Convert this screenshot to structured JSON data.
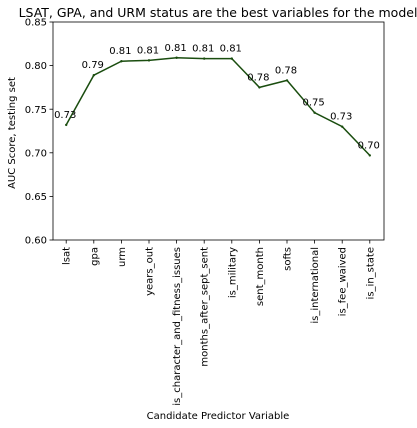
{
  "chart_data": {
    "type": "line",
    "title": "LSAT, GPA, and URM status are the best variables for the model",
    "xlabel": "Candidate Predictor Variable",
    "ylabel": "AUC Score, testing set",
    "ylim": [
      0.6,
      0.85
    ],
    "yticks": [
      0.6,
      0.65,
      0.7,
      0.75,
      0.8,
      0.85
    ],
    "ytick_labels": [
      "0.60",
      "0.65",
      "0.70",
      "0.75",
      "0.80",
      "0.85"
    ],
    "grid": false,
    "legend": "none",
    "categories": [
      "lsat",
      "gpa",
      "urm",
      "years_out",
      "is_character_and_fitness_issues",
      "months_after_sept_sent",
      "is_military",
      "sent_month",
      "softs",
      "is_international",
      "is_fee_waived",
      "is_in_state"
    ],
    "series": [
      {
        "values": [
          0.732,
          0.789,
          0.805,
          0.806,
          0.809,
          0.808,
          0.808,
          0.775,
          0.783,
          0.746,
          0.73,
          0.697
        ],
        "labels": [
          "0.73",
          "0.79",
          "0.81",
          "0.81",
          "0.81",
          "0.81",
          "0.81",
          "0.78",
          "0.78",
          "0.75",
          "0.73",
          "0.70"
        ]
      }
    ],
    "line_color": "#1a4d0f"
  }
}
